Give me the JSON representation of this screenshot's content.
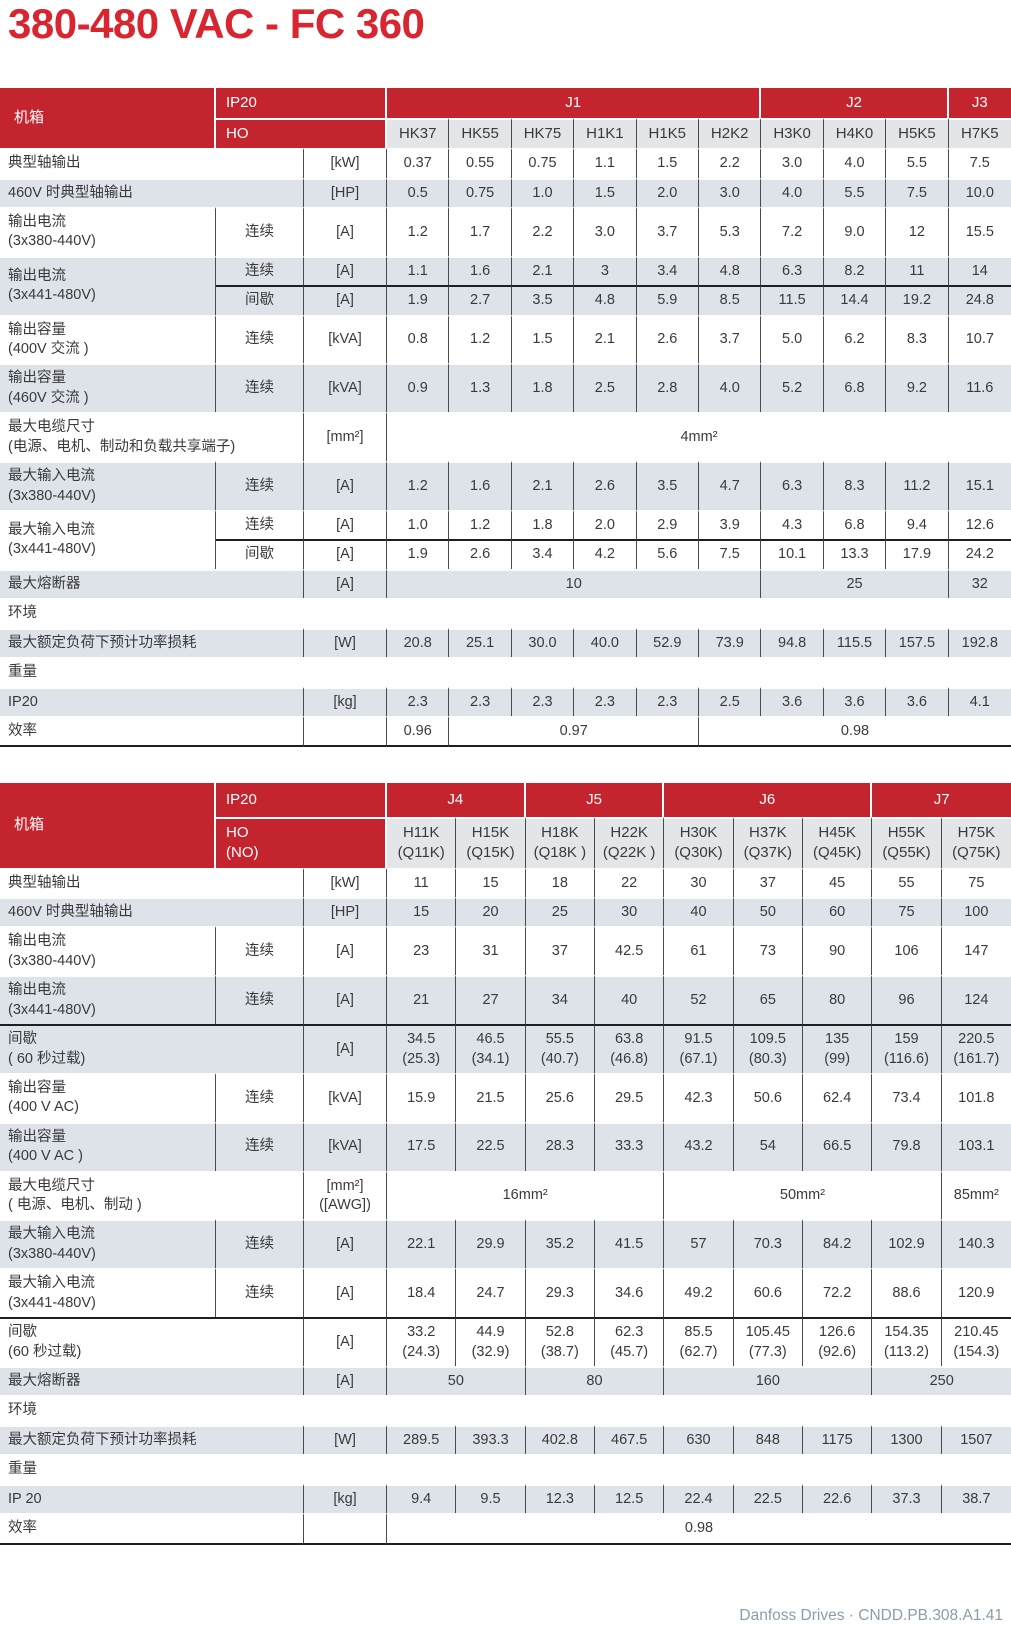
{
  "title": "380-480 VAC - FC 360",
  "footer": "Danfoss Drives · CNDD.PB.308.A1.41",
  "colors": {
    "brand-red": "#c4242e",
    "title-red": "#d92530",
    "row-shade": "#dde3e9",
    "model-bg": "#e2e6e9",
    "grid-line": "#4a4a4c",
    "dark-line": "#1f1f21",
    "footer-blue": "#8a9cab",
    "text": "#3a3a3c"
  },
  "tables": [
    {
      "name": "spec-table-j1-j3",
      "header": {
        "corner": "机箱",
        "ip_label": "IP20",
        "ho_label": "HO",
        "groups": [
          {
            "label": "J1",
            "span": 6
          },
          {
            "label": "J2",
            "span": 3
          },
          {
            "label": "J3",
            "span": 1
          }
        ],
        "models": [
          "HK37",
          "HK55",
          "HK75",
          "H1K1",
          "H1K5",
          "H2K2",
          "H3K0",
          "H4K0",
          "H5K5",
          "H7K5"
        ]
      },
      "rows": [
        {
          "label": "典型轴输出",
          "lspan": 2,
          "unit": "[kW]",
          "shade": false,
          "cells": [
            "0.37",
            "0.55",
            "0.75",
            "1.1",
            "1.5",
            "2.2",
            "3.0",
            "4.0",
            "5.5",
            "7.5"
          ]
        },
        {
          "label": "460V 时典型轴输出",
          "lspan": 2,
          "unit": "[HP]",
          "shade": true,
          "cells": [
            "0.5",
            "0.75",
            "1.0",
            "1.5",
            "2.0",
            "3.0",
            "4.0",
            "5.5",
            "7.5",
            "10.0"
          ]
        },
        {
          "label": "输出电流\n(3x380-440V)",
          "attr": "连续",
          "unit": "[A]",
          "shade": false,
          "cells": [
            "1.2",
            "1.7",
            "2.2",
            "3.0",
            "3.7",
            "5.3",
            "7.2",
            "9.0",
            "12",
            "15.5"
          ]
        },
        {
          "label": "输出电流\n(3x441-480V)",
          "rspan": 2,
          "attr": "连续",
          "unit": "[A]",
          "shade": true,
          "cells": [
            "1.1",
            "1.6",
            "2.1",
            "3",
            "3.4",
            "4.8",
            "6.3",
            "8.2",
            "11",
            "14"
          ]
        },
        {
          "cont": true,
          "attr": "间歇",
          "unit": "[A]",
          "shade": true,
          "topline": true,
          "cells": [
            "1.9",
            "2.7",
            "3.5",
            "4.8",
            "5.9",
            "8.5",
            "11.5",
            "14.4",
            "19.2",
            "24.8"
          ]
        },
        {
          "label": "输出容量\n(400V 交流 )",
          "attr": "连续",
          "unit": "[kVA]",
          "shade": false,
          "cells": [
            "0.8",
            "1.2",
            "1.5",
            "2.1",
            "2.6",
            "3.7",
            "5.0",
            "6.2",
            "8.3",
            "10.7"
          ]
        },
        {
          "label": "输出容量\n(460V 交流 )",
          "attr": "连续",
          "unit": "[kVA]",
          "shade": true,
          "cells": [
            "0.9",
            "1.3",
            "1.8",
            "2.5",
            "2.8",
            "4.0",
            "5.2",
            "6.8",
            "9.2",
            "11.6"
          ]
        },
        {
          "label": "最大电缆尺寸\n(电源、电机、制动和负载共享端子)",
          "lspan": 2,
          "unit": "[mm²]",
          "shade": false,
          "cells": [
            {
              "t": "4mm²",
              "span": 10
            }
          ]
        },
        {
          "label": "最大输入电流\n(3x380-440V)",
          "attr": "连续",
          "unit": "[A]",
          "shade": true,
          "cells": [
            "1.2",
            "1.6",
            "2.1",
            "2.6",
            "3.5",
            "4.7",
            "6.3",
            "8.3",
            "11.2",
            "15.1"
          ]
        },
        {
          "label": "最大输入电流\n(3x441-480V)",
          "rspan": 2,
          "attr": "连续",
          "unit": "[A]",
          "shade": false,
          "cells": [
            "1.0",
            "1.2",
            "1.8",
            "2.0",
            "2.9",
            "3.9",
            "4.3",
            "6.8",
            "9.4",
            "12.6"
          ]
        },
        {
          "cont": true,
          "attr": "间歇",
          "unit": "[A]",
          "shade": false,
          "topline": true,
          "cells": [
            "1.9",
            "2.6",
            "3.4",
            "4.2",
            "5.6",
            "7.5",
            "10.1",
            "13.3",
            "17.9",
            "24.2"
          ]
        },
        {
          "label": "最大熔断器",
          "lspan": 2,
          "unit": "[A]",
          "shade": true,
          "cells": [
            {
              "t": "10",
              "span": 6
            },
            {
              "t": "25",
              "span": 3
            },
            {
              "t": "32",
              "span": 1
            }
          ]
        },
        {
          "label": "环境",
          "section": true
        },
        {
          "label": "最大额定负荷下预计功率损耗",
          "lspan": 2,
          "unit": "[W]",
          "shade": true,
          "cells": [
            "20.8",
            "25.1",
            "30.0",
            "40.0",
            "52.9",
            "73.9",
            "94.8",
            "115.5",
            "157.5",
            "192.8"
          ]
        },
        {
          "label": "重量",
          "section": true
        },
        {
          "label": "IP20",
          "lspan": 2,
          "unit": "[kg]",
          "shade": true,
          "cells": [
            "2.3",
            "2.3",
            "2.3",
            "2.3",
            "2.3",
            "2.5",
            "3.6",
            "3.6",
            "3.6",
            "4.1"
          ]
        },
        {
          "label": "效率",
          "lspan": 2,
          "unit": "",
          "shade": false,
          "cells": [
            {
              "t": "0.96",
              "span": 1
            },
            {
              "t": "0.97",
              "span": 4
            },
            {
              "t": "0.98",
              "span": 5
            }
          ]
        }
      ]
    },
    {
      "name": "spec-table-j4-j7",
      "header": {
        "corner": "机箱",
        "ip_label": "IP20",
        "ho_label": "HO\n(NO)",
        "groups": [
          {
            "label": "J4",
            "span": 2
          },
          {
            "label": "J5",
            "span": 2
          },
          {
            "label": "J6",
            "span": 3
          },
          {
            "label": "J7",
            "span": 2
          }
        ],
        "models": [
          "H11K\n(Q11K)",
          "H15K\n(Q15K)",
          "H18K\n(Q18K )",
          "H22K\n(Q22K )",
          "H30K\n(Q30K)",
          "H37K\n(Q37K)",
          "H45K\n(Q45K)",
          "H55K\n(Q55K)",
          "H75K\n(Q75K)"
        ]
      },
      "rows": [
        {
          "label": "典型轴输出",
          "lspan": 2,
          "unit": "[kW]",
          "shade": false,
          "cells": [
            "11",
            "15",
            "18",
            "22",
            "30",
            "37",
            "45",
            "55",
            "75"
          ]
        },
        {
          "label": "460V 时典型轴输出",
          "lspan": 2,
          "unit": "[HP]",
          "shade": true,
          "cells": [
            "15",
            "20",
            "25",
            "30",
            "40",
            "50",
            "60",
            "75",
            "100"
          ]
        },
        {
          "label": "输出电流\n(3x380-440V)",
          "attr": "连续",
          "unit": "[A]",
          "shade": false,
          "cells": [
            "23",
            "31",
            "37",
            "42.5",
            "61",
            "73",
            "90",
            "106",
            "147"
          ]
        },
        {
          "label": "输出电流\n(3x441-480V)",
          "attr": "连续",
          "unit": "[A]",
          "shade": true,
          "cells": [
            "21",
            "27",
            "34",
            "40",
            "52",
            "65",
            "80",
            "96",
            "124"
          ]
        },
        {
          "label": "间歇\n( 60 秒过载)",
          "lspan": 2,
          "unit": "[A]",
          "shade": true,
          "topline": true,
          "cells": [
            "34.5\n(25.3)",
            "46.5\n(34.1)",
            "55.5\n(40.7)",
            "63.8\n(46.8)",
            "91.5\n(67.1)",
            "109.5\n(80.3)",
            "135\n(99)",
            "159\n(116.6)",
            "220.5\n(161.7)"
          ]
        },
        {
          "label": "输出容量\n(400 V AC)",
          "attr": "连续",
          "unit": "[kVA]",
          "shade": false,
          "cells": [
            "15.9",
            "21.5",
            "25.6",
            "29.5",
            "42.3",
            "50.6",
            "62.4",
            "73.4",
            "101.8"
          ]
        },
        {
          "label": "输出容量\n(400 V AC )",
          "attr": "连续",
          "unit": "[kVA]",
          "shade": true,
          "cells": [
            "17.5",
            "22.5",
            "28.3",
            "33.3",
            "43.2",
            "54",
            "66.5",
            "79.8",
            "103.1"
          ]
        },
        {
          "label": "最大电缆尺寸\n( 电源、电机、制动 )",
          "lspan": 2,
          "unit": "[mm²]\n([AWG])",
          "shade": false,
          "cells": [
            {
              "t": "16mm²",
              "span": 4
            },
            {
              "t": "50mm²",
              "span": 4
            },
            {
              "t": "85mm²",
              "span": 1
            }
          ]
        },
        {
          "label": "最大输入电流\n(3x380-440V)",
          "attr": "连续",
          "unit": "[A]",
          "shade": true,
          "cells": [
            "22.1",
            "29.9",
            "35.2",
            "41.5",
            "57",
            "70.3",
            "84.2",
            "102.9",
            "140.3"
          ]
        },
        {
          "label": "最大输入电流\n(3x441-480V)",
          "attr": "连续",
          "unit": "[A]",
          "shade": false,
          "cells": [
            "18.4",
            "24.7",
            "29.3",
            "34.6",
            "49.2",
            "60.6",
            "72.2",
            "88.6",
            "120.9"
          ]
        },
        {
          "label": "间歇\n(60 秒过载)",
          "lspan": 2,
          "unit": "[A]",
          "shade": false,
          "topline": true,
          "cells": [
            "33.2\n(24.3)",
            "44.9\n(32.9)",
            "52.8\n(38.7)",
            "62.3\n(45.7)",
            "85.5\n(62.7)",
            "105.45\n(77.3)",
            "126.6\n(92.6)",
            "154.35\n(113.2)",
            "210.45\n(154.3)"
          ]
        },
        {
          "label": "最大熔断器",
          "lspan": 2,
          "unit": "[A]",
          "shade": true,
          "cells": [
            {
              "t": "50",
              "span": 2
            },
            {
              "t": "80",
              "span": 2
            },
            {
              "t": "160",
              "span": 3
            },
            {
              "t": "250",
              "span": 2
            }
          ]
        },
        {
          "label": "环境",
          "section": true
        },
        {
          "label": "最大额定负荷下预计功率损耗",
          "lspan": 2,
          "unit": "[W]",
          "shade": true,
          "cells": [
            "289.5",
            "393.3",
            "402.8",
            "467.5",
            "630",
            "848",
            "1175",
            "1300",
            "1507"
          ]
        },
        {
          "label": "重量",
          "section": true
        },
        {
          "label": "IP 20",
          "lspan": 2,
          "unit": "[kg]",
          "shade": true,
          "cells": [
            "9.4",
            "9.5",
            "12.3",
            "12.5",
            "22.4",
            "22.5",
            "22.6",
            "37.3",
            "38.7"
          ]
        },
        {
          "label": "效率",
          "lspan": 2,
          "unit": "",
          "shade": false,
          "cells": [
            {
              "t": "0.98",
              "span": 9
            }
          ]
        }
      ]
    }
  ]
}
